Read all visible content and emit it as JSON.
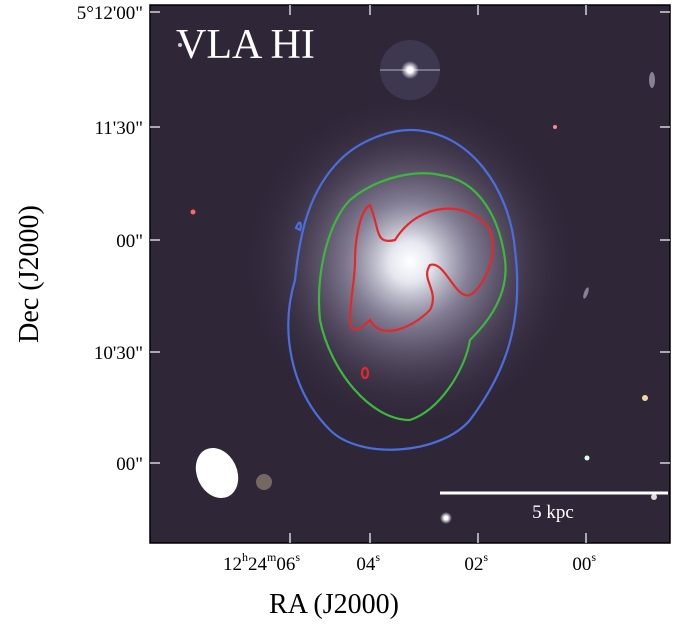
{
  "figure": {
    "title": "VLA HI",
    "x_label": "RA (J2000)",
    "y_label": "Dec (J2000)",
    "scale_bar": "5 kpc",
    "y_ticks": [
      "5°12'00\"",
      "11'30\"",
      "00\"",
      "10'30\"",
      "00\""
    ],
    "x_ticks": [
      [
        "12",
        "h",
        "24",
        "m",
        "06",
        "s"
      ],
      [
        "04",
        "s"
      ],
      [
        "02",
        "s"
      ],
      [
        "00",
        "s"
      ]
    ]
  }
}
